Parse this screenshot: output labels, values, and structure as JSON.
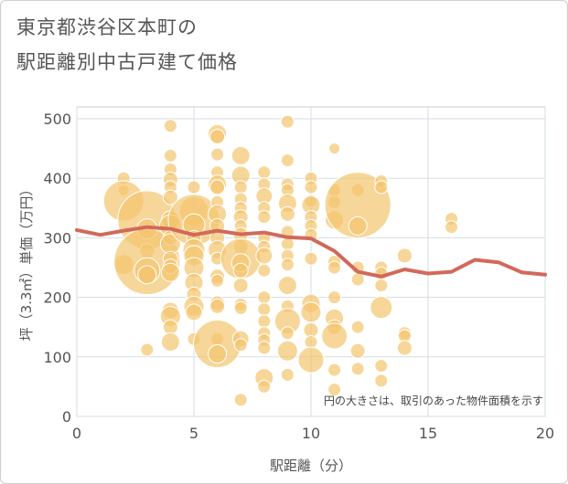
{
  "title_line1": "東京都渋谷区本町の",
  "title_line2": "駅距離別中古戸建て価格",
  "chart_data": {
    "type": "scatter",
    "xlabel": "駅距離（分）",
    "ylabel": "坪（3.3㎡）単価（万円）",
    "xlim": [
      0,
      20
    ],
    "ylim": [
      0,
      520
    ],
    "xticks": [
      0,
      5,
      10,
      15,
      20
    ],
    "yticks": [
      0,
      100,
      200,
      300,
      400,
      500
    ],
    "grid": true,
    "note": "円の大きさは、取引のあった物件面積を示す",
    "bubble_color": "#f3c46e",
    "line_color": "#d2695a",
    "points": [
      {
        "x": 2,
        "y": 400,
        "s": 7
      },
      {
        "x": 2,
        "y": 380,
        "s": 6
      },
      {
        "x": 2,
        "y": 362,
        "s": 22
      },
      {
        "x": 2,
        "y": 255,
        "s": 11
      },
      {
        "x": 3,
        "y": 330,
        "s": 32
      },
      {
        "x": 3,
        "y": 315,
        "s": 11
      },
      {
        "x": 3,
        "y": 278,
        "s": 8
      },
      {
        "x": 3,
        "y": 260,
        "s": 36
      },
      {
        "x": 3,
        "y": 245,
        "s": 14
      },
      {
        "x": 3,
        "y": 238,
        "s": 10
      },
      {
        "x": 3,
        "y": 112,
        "s": 7
      },
      {
        "x": 4,
        "y": 488,
        "s": 7
      },
      {
        "x": 4,
        "y": 438,
        "s": 7
      },
      {
        "x": 4,
        "y": 415,
        "s": 7
      },
      {
        "x": 4,
        "y": 398,
        "s": 8
      },
      {
        "x": 4,
        "y": 385,
        "s": 7
      },
      {
        "x": 4,
        "y": 368,
        "s": 8
      },
      {
        "x": 4,
        "y": 330,
        "s": 10
      },
      {
        "x": 4,
        "y": 320,
        "s": 12
      },
      {
        "x": 4,
        "y": 300,
        "s": 8
      },
      {
        "x": 4,
        "y": 290,
        "s": 11
      },
      {
        "x": 4,
        "y": 265,
        "s": 8
      },
      {
        "x": 4,
        "y": 252,
        "s": 8
      },
      {
        "x": 4,
        "y": 242,
        "s": 10
      },
      {
        "x": 4,
        "y": 178,
        "s": 9
      },
      {
        "x": 4,
        "y": 168,
        "s": 11
      },
      {
        "x": 4,
        "y": 150,
        "s": 8
      },
      {
        "x": 4,
        "y": 125,
        "s": 10
      },
      {
        "x": 5,
        "y": 385,
        "s": 7
      },
      {
        "x": 5,
        "y": 345,
        "s": 16
      },
      {
        "x": 5,
        "y": 330,
        "s": 28
      },
      {
        "x": 5,
        "y": 322,
        "s": 12
      },
      {
        "x": 5,
        "y": 300,
        "s": 8
      },
      {
        "x": 5,
        "y": 280,
        "s": 12
      },
      {
        "x": 5,
        "y": 270,
        "s": 11
      },
      {
        "x": 5,
        "y": 250,
        "s": 11
      },
      {
        "x": 5,
        "y": 225,
        "s": 10
      },
      {
        "x": 5,
        "y": 205,
        "s": 8
      },
      {
        "x": 5,
        "y": 185,
        "s": 11
      },
      {
        "x": 5,
        "y": 175,
        "s": 9
      },
      {
        "x": 5,
        "y": 130,
        "s": 7
      },
      {
        "x": 6,
        "y": 475,
        "s": 10
      },
      {
        "x": 6,
        "y": 470,
        "s": 8
      },
      {
        "x": 6,
        "y": 440,
        "s": 7
      },
      {
        "x": 6,
        "y": 410,
        "s": 7
      },
      {
        "x": 6,
        "y": 390,
        "s": 10
      },
      {
        "x": 6,
        "y": 385,
        "s": 8
      },
      {
        "x": 6,
        "y": 360,
        "s": 7
      },
      {
        "x": 6,
        "y": 340,
        "s": 10
      },
      {
        "x": 6,
        "y": 320,
        "s": 8
      },
      {
        "x": 6,
        "y": 300,
        "s": 8
      },
      {
        "x": 6,
        "y": 280,
        "s": 10
      },
      {
        "x": 6,
        "y": 265,
        "s": 7
      },
      {
        "x": 6,
        "y": 235,
        "s": 8
      },
      {
        "x": 6,
        "y": 228,
        "s": 7
      },
      {
        "x": 6,
        "y": 190,
        "s": 8
      },
      {
        "x": 6,
        "y": 185,
        "s": 8
      },
      {
        "x": 6,
        "y": 130,
        "s": 7
      },
      {
        "x": 6,
        "y": 122,
        "s": 26
      },
      {
        "x": 6,
        "y": 105,
        "s": 10
      },
      {
        "x": 7,
        "y": 438,
        "s": 10
      },
      {
        "x": 7,
        "y": 405,
        "s": 10
      },
      {
        "x": 7,
        "y": 385,
        "s": 7
      },
      {
        "x": 7,
        "y": 365,
        "s": 7
      },
      {
        "x": 7,
        "y": 350,
        "s": 7
      },
      {
        "x": 7,
        "y": 335,
        "s": 8
      },
      {
        "x": 7,
        "y": 320,
        "s": 7
      },
      {
        "x": 7,
        "y": 305,
        "s": 8
      },
      {
        "x": 7,
        "y": 285,
        "s": 8
      },
      {
        "x": 7,
        "y": 265,
        "s": 22
      },
      {
        "x": 7,
        "y": 258,
        "s": 10
      },
      {
        "x": 7,
        "y": 245,
        "s": 8
      },
      {
        "x": 7,
        "y": 220,
        "s": 8
      },
      {
        "x": 7,
        "y": 188,
        "s": 7
      },
      {
        "x": 7,
        "y": 182,
        "s": 7
      },
      {
        "x": 7,
        "y": 130,
        "s": 9
      },
      {
        "x": 7,
        "y": 120,
        "s": 7
      },
      {
        "x": 7,
        "y": 28,
        "s": 7
      },
      {
        "x": 8,
        "y": 410,
        "s": 7
      },
      {
        "x": 8,
        "y": 390,
        "s": 7
      },
      {
        "x": 8,
        "y": 370,
        "s": 9
      },
      {
        "x": 8,
        "y": 350,
        "s": 7
      },
      {
        "x": 8,
        "y": 335,
        "s": 7
      },
      {
        "x": 8,
        "y": 300,
        "s": 7
      },
      {
        "x": 8,
        "y": 285,
        "s": 7
      },
      {
        "x": 8,
        "y": 270,
        "s": 9
      },
      {
        "x": 8,
        "y": 245,
        "s": 7
      },
      {
        "x": 8,
        "y": 200,
        "s": 7
      },
      {
        "x": 8,
        "y": 180,
        "s": 7
      },
      {
        "x": 8,
        "y": 160,
        "s": 7
      },
      {
        "x": 8,
        "y": 140,
        "s": 7
      },
      {
        "x": 8,
        "y": 128,
        "s": 7
      },
      {
        "x": 8,
        "y": 115,
        "s": 7
      },
      {
        "x": 8,
        "y": 65,
        "s": 10
      },
      {
        "x": 8,
        "y": 50,
        "s": 7
      },
      {
        "x": 9,
        "y": 495,
        "s": 7
      },
      {
        "x": 9,
        "y": 430,
        "s": 7
      },
      {
        "x": 9,
        "y": 390,
        "s": 7
      },
      {
        "x": 9,
        "y": 380,
        "s": 7
      },
      {
        "x": 9,
        "y": 358,
        "s": 10
      },
      {
        "x": 9,
        "y": 340,
        "s": 8
      },
      {
        "x": 9,
        "y": 310,
        "s": 7
      },
      {
        "x": 9,
        "y": 290,
        "s": 7
      },
      {
        "x": 9,
        "y": 270,
        "s": 7
      },
      {
        "x": 9,
        "y": 255,
        "s": 7
      },
      {
        "x": 9,
        "y": 220,
        "s": 10
      },
      {
        "x": 9,
        "y": 185,
        "s": 7
      },
      {
        "x": 9,
        "y": 160,
        "s": 14
      },
      {
        "x": 9,
        "y": 140,
        "s": 7
      },
      {
        "x": 9,
        "y": 110,
        "s": 11
      },
      {
        "x": 9,
        "y": 70,
        "s": 7
      },
      {
        "x": 10,
        "y": 400,
        "s": 7
      },
      {
        "x": 10,
        "y": 385,
        "s": 7
      },
      {
        "x": 10,
        "y": 362,
        "s": 7
      },
      {
        "x": 10,
        "y": 355,
        "s": 10
      },
      {
        "x": 10,
        "y": 335,
        "s": 7
      },
      {
        "x": 10,
        "y": 320,
        "s": 7
      },
      {
        "x": 10,
        "y": 305,
        "s": 7
      },
      {
        "x": 10,
        "y": 265,
        "s": 7
      },
      {
        "x": 10,
        "y": 190,
        "s": 10
      },
      {
        "x": 10,
        "y": 175,
        "s": 11
      },
      {
        "x": 10,
        "y": 145,
        "s": 8
      },
      {
        "x": 10,
        "y": 125,
        "s": 7
      },
      {
        "x": 10,
        "y": 95,
        "s": 14
      },
      {
        "x": 11,
        "y": 450,
        "s": 6
      },
      {
        "x": 11,
        "y": 380,
        "s": 7
      },
      {
        "x": 11,
        "y": 360,
        "s": 7
      },
      {
        "x": 11,
        "y": 330,
        "s": 10
      },
      {
        "x": 11,
        "y": 260,
        "s": 7
      },
      {
        "x": 11,
        "y": 250,
        "s": 7
      },
      {
        "x": 11,
        "y": 200,
        "s": 7
      },
      {
        "x": 11,
        "y": 165,
        "s": 10
      },
      {
        "x": 11,
        "y": 150,
        "s": 8
      },
      {
        "x": 11,
        "y": 135,
        "s": 14
      },
      {
        "x": 11,
        "y": 78,
        "s": 7
      },
      {
        "x": 11,
        "y": 45,
        "s": 7
      },
      {
        "x": 12,
        "y": 380,
        "s": 7
      },
      {
        "x": 12,
        "y": 355,
        "s": 36
      },
      {
        "x": 12,
        "y": 320,
        "s": 10
      },
      {
        "x": 12,
        "y": 250,
        "s": 7
      },
      {
        "x": 12,
        "y": 230,
        "s": 7
      },
      {
        "x": 12,
        "y": 150,
        "s": 7
      },
      {
        "x": 12,
        "y": 110,
        "s": 8
      },
      {
        "x": 12,
        "y": 80,
        "s": 7
      },
      {
        "x": 13,
        "y": 395,
        "s": 7
      },
      {
        "x": 13,
        "y": 385,
        "s": 7
      },
      {
        "x": 13,
        "y": 250,
        "s": 7
      },
      {
        "x": 13,
        "y": 240,
        "s": 7
      },
      {
        "x": 13,
        "y": 220,
        "s": 7
      },
      {
        "x": 13,
        "y": 183,
        "s": 12
      },
      {
        "x": 13,
        "y": 85,
        "s": 7
      },
      {
        "x": 13,
        "y": 60,
        "s": 7
      },
      {
        "x": 14,
        "y": 270,
        "s": 8
      },
      {
        "x": 14,
        "y": 140,
        "s": 7
      },
      {
        "x": 14,
        "y": 135,
        "s": 7
      },
      {
        "x": 14,
        "y": 115,
        "s": 8
      },
      {
        "x": 16,
        "y": 332,
        "s": 7
      },
      {
        "x": 16,
        "y": 318,
        "s": 7
      }
    ],
    "trend_line": [
      {
        "x": 0,
        "y": 313
      },
      {
        "x": 1,
        "y": 305
      },
      {
        "x": 2,
        "y": 312
      },
      {
        "x": 3,
        "y": 318
      },
      {
        "x": 4,
        "y": 315
      },
      {
        "x": 5,
        "y": 305
      },
      {
        "x": 6,
        "y": 312
      },
      {
        "x": 7,
        "y": 306
      },
      {
        "x": 8,
        "y": 309
      },
      {
        "x": 9,
        "y": 301
      },
      {
        "x": 10,
        "y": 299
      },
      {
        "x": 11,
        "y": 278
      },
      {
        "x": 12,
        "y": 243
      },
      {
        "x": 13,
        "y": 235
      },
      {
        "x": 14,
        "y": 247
      },
      {
        "x": 15,
        "y": 240
      },
      {
        "x": 16,
        "y": 243
      },
      {
        "x": 17,
        "y": 263
      },
      {
        "x": 18,
        "y": 259
      },
      {
        "x": 19,
        "y": 242
      },
      {
        "x": 20,
        "y": 238
      }
    ]
  }
}
